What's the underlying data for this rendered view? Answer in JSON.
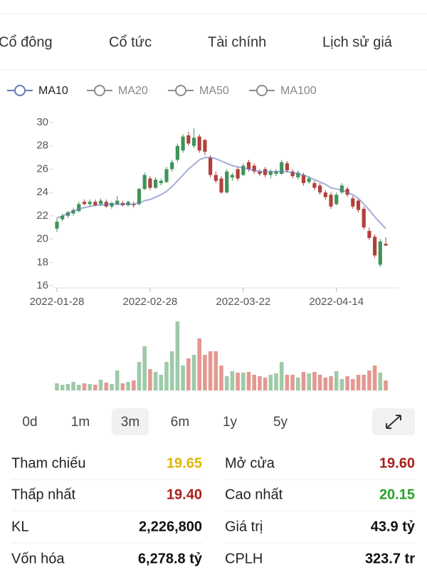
{
  "tabs": [
    "Cổ đông",
    "Cổ tức",
    "Tài chính",
    "Lịch sử giá"
  ],
  "chart_data": {
    "type": "candlestick",
    "indicators": [
      {
        "name": "MA10",
        "color": "#6677bb",
        "active": true
      },
      {
        "name": "MA20",
        "color": "#8c8c8c",
        "active": false
      },
      {
        "name": "MA50",
        "color": "#8c8c8c",
        "active": false
      },
      {
        "name": "MA100",
        "color": "#8c8c8c",
        "active": false
      }
    ],
    "categories": [
      "2022-01-28",
      null,
      null,
      null,
      null,
      null,
      null,
      null,
      null,
      null,
      null,
      null,
      null,
      null,
      null,
      null,
      null,
      "2022-02-28",
      null,
      null,
      null,
      null,
      null,
      null,
      null,
      null,
      null,
      null,
      null,
      null,
      null,
      null,
      null,
      null,
      "2022-03-22",
      null,
      null,
      null,
      null,
      null,
      null,
      null,
      null,
      null,
      null,
      null,
      null,
      null,
      null,
      null,
      null,
      "2022-04-14",
      null,
      null,
      null,
      null,
      null,
      null,
      null,
      null,
      null
    ],
    "open": [
      20.9,
      21.7,
      22.0,
      22.2,
      22.4,
      23.2,
      23.0,
      23.2,
      23.0,
      23.2,
      22.8,
      23.0,
      23.1,
      22.9,
      23.0,
      23.0,
      24.3,
      25.2,
      24.4,
      24.8,
      24.9,
      26.0,
      26.8,
      27.6,
      28.9,
      28.0,
      28.8,
      28.5,
      27.0,
      25.5,
      25.2,
      24.0,
      25.3,
      26.0,
      25.5,
      26.6,
      26.3,
      25.8,
      26.0,
      25.5,
      25.6,
      25.6,
      26.5,
      25.8,
      25.3,
      25.5,
      24.9,
      24.8,
      24.6,
      24.0,
      23.8,
      23.0,
      24.0,
      24.3,
      23.5,
      23.3,
      22.6,
      20.7,
      20.2,
      17.8,
      19.6
    ],
    "high": [
      21.8,
      22.2,
      22.4,
      22.7,
      23.2,
      23.4,
      23.4,
      23.4,
      23.5,
      23.4,
      23.2,
      23.7,
      23.3,
      23.3,
      23.2,
      24.4,
      25.7,
      25.4,
      25.3,
      25.2,
      26.2,
      26.8,
      28.2,
      29.0,
      29.2,
      29.5,
      29.0,
      28.6,
      27.2,
      25.8,
      25.4,
      26.0,
      25.7,
      26.2,
      26.5,
      26.8,
      26.5,
      26.0,
      26.2,
      26.0,
      26.0,
      26.8,
      26.7,
      26.0,
      25.9,
      25.7,
      25.4,
      25.0,
      24.8,
      24.2,
      24.0,
      24.0,
      24.8,
      24.5,
      23.7,
      23.4,
      22.8,
      21.0,
      20.4,
      20.0,
      20.15
    ],
    "low": [
      20.6,
      21.5,
      21.8,
      22.0,
      22.3,
      22.9,
      22.8,
      22.8,
      22.9,
      22.7,
      22.6,
      22.9,
      22.8,
      22.8,
      22.7,
      22.9,
      24.2,
      24.2,
      24.3,
      24.6,
      24.8,
      25.8,
      26.6,
      27.4,
      28.0,
      27.8,
      27.4,
      27.2,
      25.3,
      24.8,
      23.9,
      23.9,
      25.0,
      25.0,
      25.4,
      25.8,
      25.6,
      25.4,
      25.3,
      25.2,
      25.4,
      25.5,
      25.7,
      25.2,
      25.1,
      24.6,
      24.7,
      24.2,
      23.8,
      23.4,
      22.6,
      22.9,
      23.9,
      23.6,
      22.6,
      22.3,
      20.8,
      19.9,
      18.4,
      17.6,
      19.4
    ],
    "close": [
      21.5,
      22.0,
      22.3,
      22.5,
      23.0,
      23.0,
      23.2,
      22.9,
      23.3,
      22.8,
      23.1,
      23.3,
      22.9,
      23.2,
      22.9,
      24.3,
      25.5,
      24.4,
      25.1,
      25.0,
      26.0,
      26.6,
      28.0,
      28.8,
      28.2,
      28.7,
      27.6,
      27.5,
      25.5,
      25.0,
      24.0,
      25.8,
      25.5,
      25.2,
      26.3,
      26.0,
      25.8,
      25.6,
      25.5,
      25.8,
      25.8,
      26.6,
      25.9,
      25.4,
      25.7,
      24.8,
      25.2,
      24.4,
      24.0,
      23.6,
      22.8,
      23.8,
      24.6,
      23.8,
      22.8,
      22.5,
      21.0,
      20.1,
      18.6,
      19.8,
      19.45
    ],
    "ma10": [
      21.8,
      22.0,
      22.2,
      22.4,
      22.6,
      22.7,
      22.8,
      22.9,
      22.9,
      23.0,
      23.0,
      23.0,
      23.0,
      23.0,
      23.0,
      23.1,
      23.3,
      23.4,
      23.6,
      23.8,
      24.1,
      24.5,
      25.0,
      25.5,
      26.0,
      26.4,
      26.8,
      27.0,
      27.0,
      26.9,
      26.7,
      26.5,
      26.3,
      26.2,
      26.1,
      26.0,
      25.9,
      25.8,
      25.8,
      25.8,
      25.8,
      25.8,
      25.8,
      25.7,
      25.6,
      25.5,
      25.3,
      25.1,
      24.9,
      24.7,
      24.4,
      24.3,
      24.2,
      24.0,
      23.8,
      23.5,
      23.0,
      22.5,
      21.9,
      21.4,
      20.9
    ],
    "volume": [
      10,
      8,
      9,
      12,
      8,
      10,
      9,
      8,
      15,
      11,
      9,
      28,
      10,
      12,
      14,
      40,
      62,
      30,
      26,
      22,
      40,
      55,
      97,
      35,
      45,
      50,
      73,
      50,
      55,
      55,
      35,
      20,
      27,
      25,
      25,
      26,
      22,
      20,
      18,
      22,
      24,
      40,
      22,
      22,
      18,
      26,
      24,
      26,
      22,
      18,
      20,
      27,
      16,
      20,
      16,
      22,
      22,
      28,
      35,
      25,
      14
    ],
    "up_color": "#3f9458",
    "down_color": "#b2403c",
    "volume_up_color": "#9ecaa8",
    "volume_down_color": "#e49891",
    "ylim": [
      16,
      30
    ],
    "yticks": [
      16,
      18,
      20,
      22,
      24,
      26,
      28,
      30
    ]
  },
  "ranges": [
    {
      "label": "0d",
      "selected": false
    },
    {
      "label": "1m",
      "selected": false
    },
    {
      "label": "3m",
      "selected": true
    },
    {
      "label": "6m",
      "selected": false
    },
    {
      "label": "1y",
      "selected": false
    },
    {
      "label": "5y",
      "selected": false
    }
  ],
  "stats": [
    [
      {
        "label": "Tham chiếu",
        "value": "19.65",
        "color": "#e2b600"
      },
      {
        "label": "Mở cửa",
        "value": "19.60",
        "color": "#a8201a"
      }
    ],
    [
      {
        "label": "Thấp nhất",
        "value": "19.40",
        "color": "#a8201a"
      },
      {
        "label": "Cao nhất",
        "value": "20.15",
        "color": "#27a327"
      }
    ],
    [
      {
        "label": "KL",
        "value": "2,226,800",
        "color": "#111111"
      },
      {
        "label": "Giá trị",
        "value": "43.9 tỷ",
        "color": "#111111"
      }
    ],
    [
      {
        "label": "Vốn hóa",
        "value": "6,278.8 tỷ",
        "color": "#111111"
      },
      {
        "label": "CPLH",
        "value": "323.7 tr",
        "color": "#111111"
      }
    ]
  ]
}
